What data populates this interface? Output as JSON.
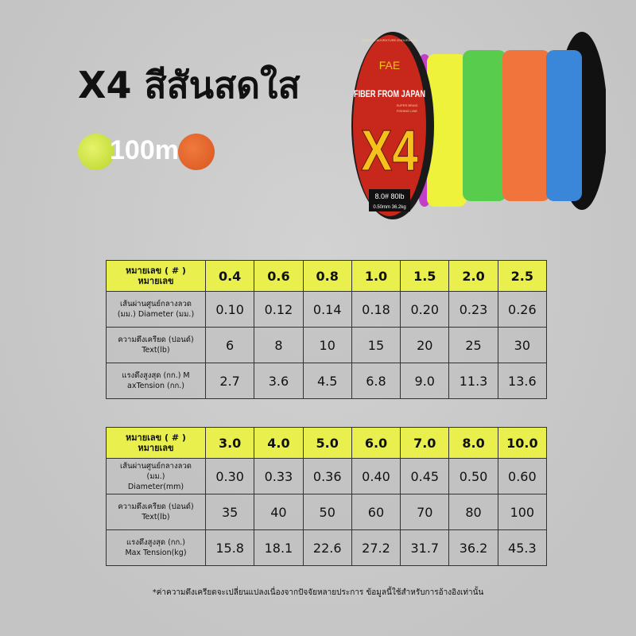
{
  "title": "X4 สีสันสดใส",
  "length_label": "100m",
  "colors": {
    "yellow": "#d6ea44",
    "orange": "#e4652b",
    "header_yellow": "#e9f04e",
    "background": "#c9c9c9"
  },
  "spool": {
    "brand": "FAE",
    "arc_text": "FINESSE-ADVENTURE-ENDURANCE",
    "tagline": "FIBER FROM JAPAN",
    "subline1": "SUPER BRAID",
    "subline2": "FISHING LINE",
    "model": "X4",
    "spec1": "8.0# 80lb",
    "spec2": "0.50mm 36.2kg",
    "line_colors": [
      "#c23fc8",
      "#eef23a",
      "#58cc4c",
      "#f0743c",
      "#3a86d8"
    ]
  },
  "tables": [
    {
      "header_label": "หมายเลข ( # ) หมายเลข",
      "sizes": [
        "0.4",
        "0.6",
        "0.8",
        "1.0",
        "1.5",
        "2.0",
        "2.5"
      ],
      "rows": [
        {
          "label": [
            "เส้นผ่านศูนย์กลางลวด",
            "(มม.) Diameter (มม.)"
          ],
          "values": [
            "0.10",
            "0.12",
            "0.14",
            "0.18",
            "0.20",
            "0.23",
            "0.26"
          ]
        },
        {
          "label": [
            "ความตึงเครียด (ปอนด์)",
            "Text(lb)"
          ],
          "values": [
            "6",
            "8",
            "10",
            "15",
            "20",
            "25",
            "30"
          ]
        },
        {
          "label": [
            "แรงดึงสูงสุด (กก.) M",
            "axTension (กก.)"
          ],
          "values": [
            "2.7",
            "3.6",
            "4.5",
            "6.8",
            "9.0",
            "11.3",
            "13.6"
          ]
        }
      ]
    },
    {
      "header_label": "หมายเลข ( # ) หมายเลข",
      "sizes": [
        "3.0",
        "4.0",
        "5.0",
        "6.0",
        "7.0",
        "8.0",
        "10.0"
      ],
      "rows": [
        {
          "label": [
            "เส้นผ่านศูนย์กลางลวด (มม.)",
            "Diameter(mm)"
          ],
          "values": [
            "0.30",
            "0.33",
            "0.36",
            "0.40",
            "0.45",
            "0.50",
            "0.60"
          ]
        },
        {
          "label": [
            "ความตึงเครียด (ปอนด์)",
            "Text(lb)"
          ],
          "values": [
            "35",
            "40",
            "50",
            "60",
            "70",
            "80",
            "100"
          ]
        },
        {
          "label": [
            "แรงดึงสูงสุด (กก.)",
            "Max Tension(kg)"
          ],
          "values": [
            "15.8",
            "18.1",
            "22.6",
            "27.2",
            "31.7",
            "36.2",
            "45.3"
          ]
        }
      ]
    }
  ],
  "footnote": "*ค่าความตึงเครียดจะเปลี่ยนแปลงเนื่องจากปัจจัยหลายประการ ข้อมูลนี้ใช้สำหรับการอ้างอิงเท่านั้น"
}
